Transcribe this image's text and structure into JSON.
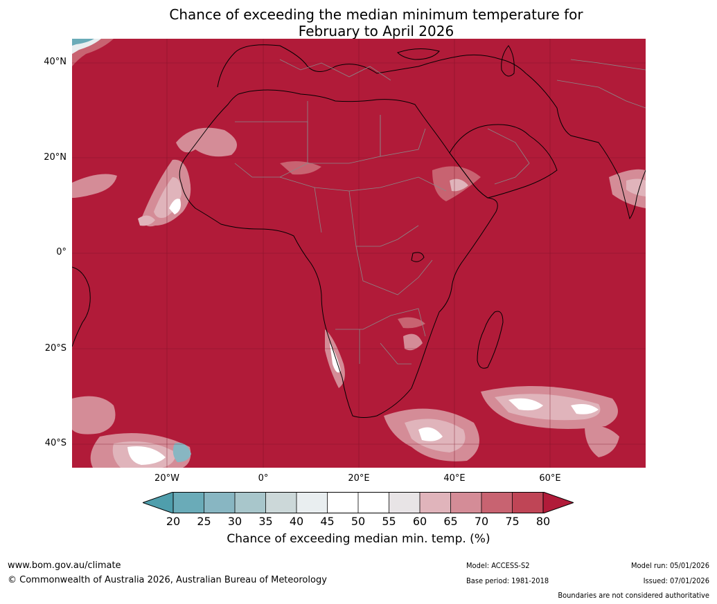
{
  "title": {
    "line1": "Chance of exceeding the median minimum temperature for",
    "line2": "February to April 2026"
  },
  "map": {
    "base_color": "#b11b39",
    "lat_labels": [
      "40°N",
      "20°N",
      "0°",
      "20°S",
      "40°S"
    ],
    "lon_labels": [
      "20°W",
      "0°",
      "20°E",
      "40°E",
      "60°E"
    ]
  },
  "colorbar": {
    "ticks": [
      "20",
      "25",
      "30",
      "35",
      "40",
      "45",
      "50",
      "55",
      "60",
      "65",
      "70",
      "75",
      "80"
    ],
    "colors": {
      "below_20": "#4f9eac",
      "20_25": "#6aabb8",
      "25_30": "#88b6c2",
      "30_35": "#a8c6cb",
      "35_40": "#ccd8d9",
      "40_45": "#e9eef0",
      "45_50": "#ffffff",
      "50_55": "#ffffff",
      "55_60": "#e8e4e6",
      "60_65": "#e0b4bb",
      "65_70": "#d48c97",
      "70_75": "#c86371",
      "75_80": "#bf4556",
      "above_80": "#b11b39"
    },
    "title": "Chance of exceeding median min. temp. (%)"
  },
  "footer": {
    "website": "www.bom.gov.au/climate",
    "copyright": "© Commonwealth of Australia 2026, Australian Bureau of Meteorology",
    "model": "Model: ACCESS-S2",
    "base_period": "Base period: 1981-2018",
    "model_run": "Model run: 05/01/2026",
    "issued": "Issued: 07/01/2026",
    "disclaimer": "Boundaries are not considered authoritative"
  }
}
